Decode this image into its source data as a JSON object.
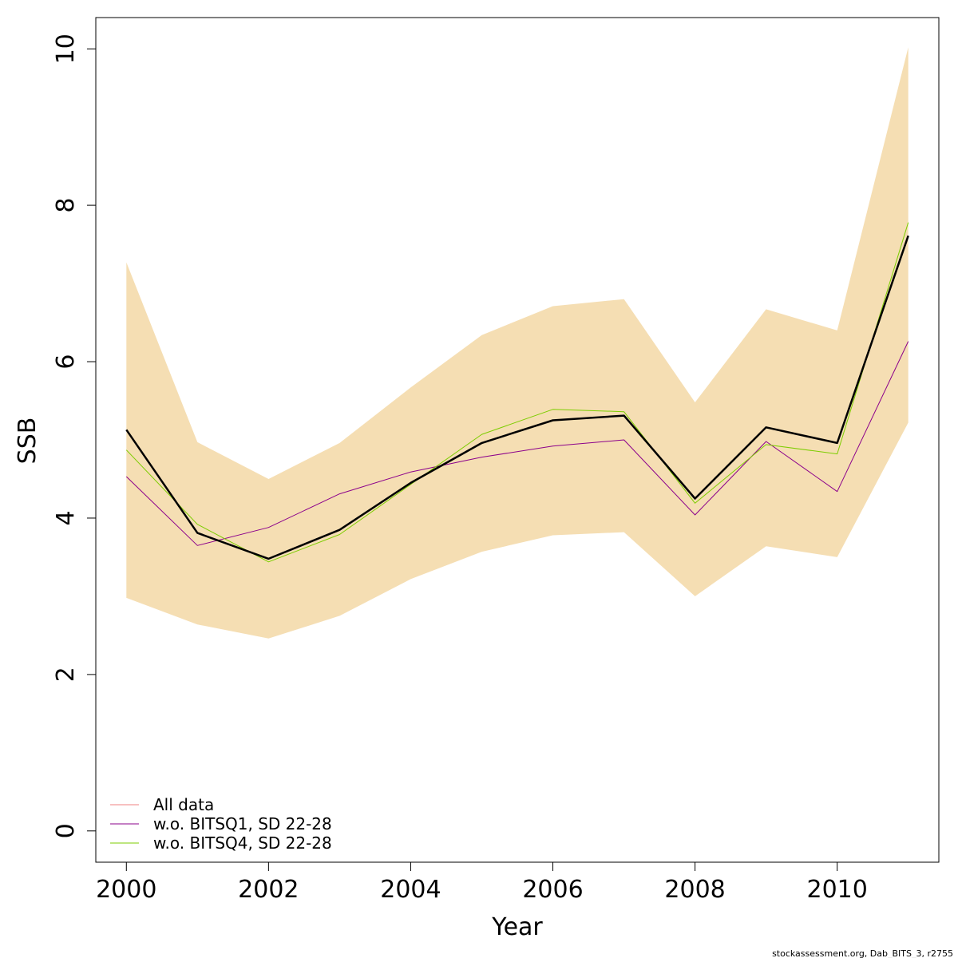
{
  "chart_data": {
    "type": "line",
    "xlabel": "Year",
    "ylabel": "SSB",
    "xlim": [
      1999.57,
      2011.43
    ],
    "ylim": [
      -0.4,
      10.4
    ],
    "x_ticks": [
      "2000",
      "2002",
      "2004",
      "2006",
      "2008",
      "2010"
    ],
    "y_ticks": [
      "0",
      "2",
      "4",
      "6",
      "8",
      "10"
    ],
    "x": [
      2000,
      2001,
      2002,
      2003,
      2004,
      2005,
      2006,
      2007,
      2008,
      2009,
      2010,
      2011
    ],
    "band": {
      "color": "#F5DEB3",
      "lower": [
        2.98,
        2.64,
        2.46,
        2.75,
        3.22,
        3.57,
        3.78,
        3.82,
        3.0,
        3.64,
        3.5,
        5.22
      ],
      "upper": [
        7.27,
        4.97,
        4.5,
        4.96,
        5.67,
        6.34,
        6.71,
        6.8,
        5.48,
        6.67,
        6.4,
        10.02
      ]
    },
    "series": [
      {
        "name": "All data",
        "color": "#000000",
        "width": 2.5,
        "values": [
          5.13,
          3.81,
          3.48,
          3.85,
          4.45,
          4.96,
          5.25,
          5.31,
          4.25,
          5.16,
          4.96,
          7.61
        ]
      },
      {
        "name": "w.o. BITSQ1, SD 22-28",
        "color": "#8B008B",
        "width": 1,
        "values": [
          4.53,
          3.65,
          3.88,
          4.31,
          4.59,
          4.78,
          4.92,
          5.0,
          4.04,
          4.98,
          4.34,
          6.26
        ]
      },
      {
        "name": "w.o. BITSQ4, SD 22-28",
        "color": "#7CCD00",
        "width": 1,
        "values": [
          4.87,
          3.92,
          3.44,
          3.79,
          4.43,
          5.07,
          5.39,
          5.36,
          4.19,
          4.94,
          4.82,
          7.78
        ]
      }
    ],
    "legend": {
      "position": "bottom-left",
      "entries": [
        {
          "label": "All data",
          "color": "#F08080"
        },
        {
          "label": "w.o. BITSQ1, SD 22-28",
          "color": "#8B008B"
        },
        {
          "label": "w.o. BITSQ4, SD 22-28",
          "color": "#7CCD00"
        }
      ]
    },
    "grid": false
  },
  "footer": "stockassessment.org, Dab_BITS_3, r2755"
}
